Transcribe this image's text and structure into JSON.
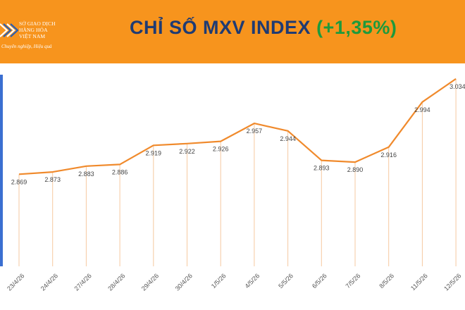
{
  "header": {
    "logo": {
      "name_lines": [
        "SỞ GIAO DỊCH",
        "HÀNG HÓA",
        "VIỆT NAM"
      ],
      "tagline": "Chuyên nghiệp, Hiệu quả"
    },
    "title_main": "CHỈ SỐ MXV INDEX",
    "title_change": "(+1,35%)"
  },
  "colors": {
    "header_bg": "#f7941d",
    "line": "#f08a2c",
    "title": "#1f3b73",
    "change_positive": "#1e9a3c",
    "accent_bar": "#3b6fd1"
  },
  "chart_data": {
    "type": "line",
    "categories": [
      "23/4/26",
      "24/4/26",
      "27/4/26",
      "28/4/26",
      "29/4/26",
      "30/4/26",
      "1/5/26",
      "4/5/26",
      "5/5/26",
      "6/5/26",
      "7/5/26",
      "8/5/26",
      "11/5/26",
      "12/5/26"
    ],
    "values": [
      2869,
      2873,
      2883,
      2886,
      2919,
      2922,
      2926,
      2957,
      2944,
      2893,
      2890,
      2916,
      2994,
      3034
    ],
    "labels": [
      "2.869",
      "2.873",
      "2.883",
      "2.886",
      "2.919",
      "2.922",
      "2.926",
      "2.957",
      "2.944",
      "2.893",
      "2.890",
      "2.916",
      "2.994",
      "3.034"
    ],
    "ylim": [
      2750,
      3040
    ],
    "grid": false,
    "drop_lines": true
  }
}
